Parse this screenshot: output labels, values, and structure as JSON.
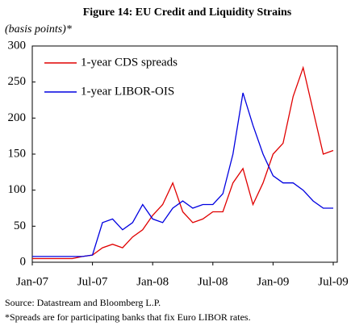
{
  "chart_data": {
    "type": "line",
    "title": "Figure 14: EU Credit and Liquidity Strains",
    "subtitle": "(basis points)*",
    "x": [
      "2007-01",
      "2007-02",
      "2007-03",
      "2007-04",
      "2007-05",
      "2007-06",
      "2007-07",
      "2007-08",
      "2007-09",
      "2007-10",
      "2007-11",
      "2007-12",
      "2008-01",
      "2008-02",
      "2008-03",
      "2008-04",
      "2008-05",
      "2008-06",
      "2008-07",
      "2008-08",
      "2008-09",
      "2008-10",
      "2008-11",
      "2008-12",
      "2009-01",
      "2009-02",
      "2009-03",
      "2009-04",
      "2009-05",
      "2009-06",
      "2009-07"
    ],
    "series": [
      {
        "name": "1-year CDS spreads",
        "color": "#e00000",
        "values": [
          5,
          5,
          5,
          5,
          5,
          8,
          10,
          20,
          25,
          20,
          35,
          45,
          65,
          80,
          110,
          70,
          55,
          60,
          70,
          70,
          110,
          130,
          80,
          110,
          150,
          165,
          230,
          270,
          210,
          150,
          155
        ]
      },
      {
        "name": "1-year LIBOR-OIS",
        "color": "#0000e0",
        "values": [
          8,
          8,
          8,
          8,
          8,
          8,
          10,
          55,
          60,
          45,
          55,
          80,
          60,
          55,
          75,
          85,
          75,
          80,
          80,
          95,
          150,
          235,
          190,
          150,
          120,
          110,
          110,
          100,
          85,
          75,
          75
        ]
      }
    ],
    "xlim": [
      "2007-01",
      "2009-07"
    ],
    "xticks": [
      {
        "value": "2007-01",
        "label": "Jan-07"
      },
      {
        "value": "2007-07",
        "label": "Jul-07"
      },
      {
        "value": "2008-01",
        "label": "Jan-08"
      },
      {
        "value": "2008-07",
        "label": "Jul-08"
      },
      {
        "value": "2009-01",
        "label": "Jan-09"
      },
      {
        "value": "2009-07",
        "label": "Jul-09"
      }
    ],
    "ylim": [
      0,
      300
    ],
    "yticks": [
      0,
      50,
      100,
      150,
      200,
      250,
      300
    ],
    "grid": false,
    "legend": "upper left",
    "source": "Source: Datastream and Bloomberg L.P.",
    "note": "*Spreads are for participating banks that fix Euro LIBOR rates."
  }
}
